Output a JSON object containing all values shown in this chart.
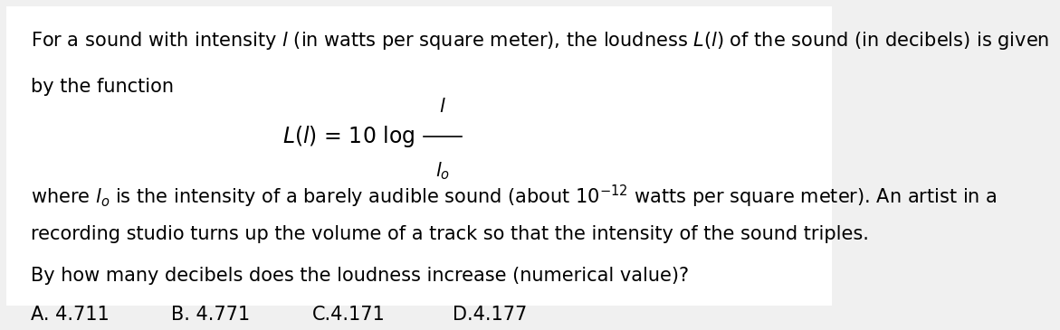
{
  "background_color": "#f0f0f0",
  "panel_color": "#ffffff",
  "text_color": "#000000",
  "question": "By how many decibels does the loudness increase (numerical value)?",
  "optA": "A. 4.711",
  "optB": "B. 4.771",
  "optC": "C.4.171",
  "optD": "D.4.177",
  "font_size_main": 15,
  "font_size_formula": 17
}
